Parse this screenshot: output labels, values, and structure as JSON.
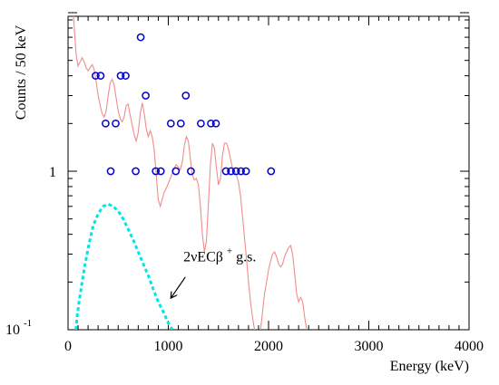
{
  "chart_data": {
    "type": "scatter",
    "xlabel": "Energy (keV)",
    "ylabel": "Counts / 50 keV",
    "xlim": [
      0,
      4000
    ],
    "ylim": [
      0.1,
      10
    ],
    "y_scale": "log",
    "grid": false,
    "x_ticks": [
      0,
      1000,
      2000,
      3000,
      4000
    ],
    "x_tick_labels": [
      "0",
      "1000",
      "2000",
      "3000",
      "4000"
    ],
    "y_tick_labels": {
      "major_one": "1",
      "base": "10",
      "exponent": "-1"
    },
    "series": [
      {
        "kind": "data-points",
        "marker": "open-circle",
        "color": "#0000cc",
        "points": [
          [
            275,
            4
          ],
          [
            325,
            4
          ],
          [
            375,
            2
          ],
          [
            425,
            1
          ],
          [
            475,
            2
          ],
          [
            525,
            4
          ],
          [
            575,
            4
          ],
          [
            675,
            1
          ],
          [
            725,
            7
          ],
          [
            775,
            3
          ],
          [
            875,
            1
          ],
          [
            925,
            1
          ],
          [
            1025,
            2
          ],
          [
            1075,
            1
          ],
          [
            1125,
            2
          ],
          [
            1175,
            3
          ],
          [
            1225,
            1
          ],
          [
            1325,
            2
          ],
          [
            1425,
            2
          ],
          [
            1475,
            2
          ],
          [
            1575,
            1
          ],
          [
            1625,
            1
          ],
          [
            1675,
            1
          ],
          [
            1725,
            1
          ],
          [
            1775,
            1
          ],
          [
            2025,
            1
          ]
        ]
      },
      {
        "kind": "background-fit",
        "style": "solid",
        "color": "#f08c8c",
        "points": [
          [
            50,
            10
          ],
          [
            60,
            8.5
          ],
          [
            80,
            5.5
          ],
          [
            100,
            4.6
          ],
          [
            120,
            4.9
          ],
          [
            140,
            5.2
          ],
          [
            160,
            4.9
          ],
          [
            180,
            4.5
          ],
          [
            200,
            4.3
          ],
          [
            220,
            4.5
          ],
          [
            240,
            4.7
          ],
          [
            260,
            4.4
          ],
          [
            280,
            3.7
          ],
          [
            300,
            3.0
          ],
          [
            320,
            2.6
          ],
          [
            340,
            2.3
          ],
          [
            360,
            2.2
          ],
          [
            380,
            2.4
          ],
          [
            400,
            3.0
          ],
          [
            420,
            3.6
          ],
          [
            440,
            3.8
          ],
          [
            460,
            3.5
          ],
          [
            480,
            2.9
          ],
          [
            500,
            2.4
          ],
          [
            520,
            2.15
          ],
          [
            540,
            2.05
          ],
          [
            560,
            2.2
          ],
          [
            580,
            2.6
          ],
          [
            600,
            2.65
          ],
          [
            620,
            2.25
          ],
          [
            640,
            1.95
          ],
          [
            660,
            1.7
          ],
          [
            680,
            1.55
          ],
          [
            700,
            1.75
          ],
          [
            720,
            2.3
          ],
          [
            740,
            2.7
          ],
          [
            760,
            2.3
          ],
          [
            780,
            1.85
          ],
          [
            800,
            1.65
          ],
          [
            820,
            1.8
          ],
          [
            840,
            1.65
          ],
          [
            860,
            1.35
          ],
          [
            880,
            0.95
          ],
          [
            900,
            0.66
          ],
          [
            920,
            0.6
          ],
          [
            940,
            0.67
          ],
          [
            960,
            0.74
          ],
          [
            980,
            0.78
          ],
          [
            1000,
            0.84
          ],
          [
            1020,
            0.9
          ],
          [
            1040,
            0.97
          ],
          [
            1060,
            1.05
          ],
          [
            1080,
            1.1
          ],
          [
            1100,
            1.06
          ],
          [
            1120,
            1.02
          ],
          [
            1140,
            1.15
          ],
          [
            1160,
            1.45
          ],
          [
            1180,
            1.65
          ],
          [
            1200,
            1.55
          ],
          [
            1220,
            1.2
          ],
          [
            1240,
            0.95
          ],
          [
            1260,
            0.88
          ],
          [
            1280,
            0.9
          ],
          [
            1300,
            0.82
          ],
          [
            1320,
            0.6
          ],
          [
            1340,
            0.4
          ],
          [
            1360,
            0.31
          ],
          [
            1380,
            0.36
          ],
          [
            1400,
            0.62
          ],
          [
            1420,
            1.1
          ],
          [
            1440,
            1.5
          ],
          [
            1460,
            1.4
          ],
          [
            1480,
            1.05
          ],
          [
            1500,
            0.82
          ],
          [
            1520,
            0.9
          ],
          [
            1540,
            1.25
          ],
          [
            1560,
            1.5
          ],
          [
            1580,
            1.5
          ],
          [
            1600,
            1.38
          ],
          [
            1620,
            1.2
          ],
          [
            1640,
            1.05
          ],
          [
            1660,
            1.0
          ],
          [
            1680,
            0.95
          ],
          [
            1700,
            0.85
          ],
          [
            1720,
            0.7
          ],
          [
            1740,
            0.52
          ],
          [
            1760,
            0.38
          ],
          [
            1780,
            0.28
          ],
          [
            1800,
            0.2
          ],
          [
            1820,
            0.15
          ],
          [
            1840,
            0.12
          ],
          [
            1860,
            0.1
          ],
          [
            1880,
            0.085
          ],
          [
            1900,
            0.085
          ],
          [
            1920,
            0.1
          ],
          [
            1940,
            0.13
          ],
          [
            1960,
            0.17
          ],
          [
            1980,
            0.2
          ],
          [
            2000,
            0.24
          ],
          [
            2020,
            0.27
          ],
          [
            2040,
            0.3
          ],
          [
            2060,
            0.31
          ],
          [
            2080,
            0.29
          ],
          [
            2100,
            0.26
          ],
          [
            2120,
            0.25
          ],
          [
            2140,
            0.26
          ],
          [
            2160,
            0.29
          ],
          [
            2180,
            0.31
          ],
          [
            2200,
            0.33
          ],
          [
            2220,
            0.34
          ],
          [
            2240,
            0.3
          ],
          [
            2260,
            0.23
          ],
          [
            2280,
            0.17
          ],
          [
            2300,
            0.15
          ],
          [
            2320,
            0.16
          ],
          [
            2340,
            0.15
          ],
          [
            2360,
            0.12
          ],
          [
            2380,
            0.1
          ],
          [
            2390,
            0.09
          ]
        ]
      },
      {
        "kind": "signal-expectation",
        "style": "dashed",
        "color": "#00e5e5",
        "points": [
          [
            80,
            0.1
          ],
          [
            90,
            0.12
          ],
          [
            110,
            0.15
          ],
          [
            140,
            0.2
          ],
          [
            170,
            0.26
          ],
          [
            210,
            0.35
          ],
          [
            250,
            0.45
          ],
          [
            300,
            0.54
          ],
          [
            350,
            0.6
          ],
          [
            400,
            0.62
          ],
          [
            450,
            0.6
          ],
          [
            500,
            0.56
          ],
          [
            550,
            0.5
          ],
          [
            600,
            0.43
          ],
          [
            650,
            0.37
          ],
          [
            700,
            0.31
          ],
          [
            750,
            0.26
          ],
          [
            800,
            0.22
          ],
          [
            850,
            0.18
          ],
          [
            900,
            0.15
          ],
          [
            950,
            0.13
          ],
          [
            1000,
            0.11
          ],
          [
            1040,
            0.1
          ]
        ]
      }
    ],
    "annotation": {
      "text_base": "2νECβ",
      "text_sup": "+",
      "text_suffix": " g.s.",
      "text_x": 1150,
      "text_y": 0.27,
      "arrow_from": [
        1170,
        0.215
      ],
      "arrow_to": [
        1030,
        0.16
      ]
    }
  }
}
